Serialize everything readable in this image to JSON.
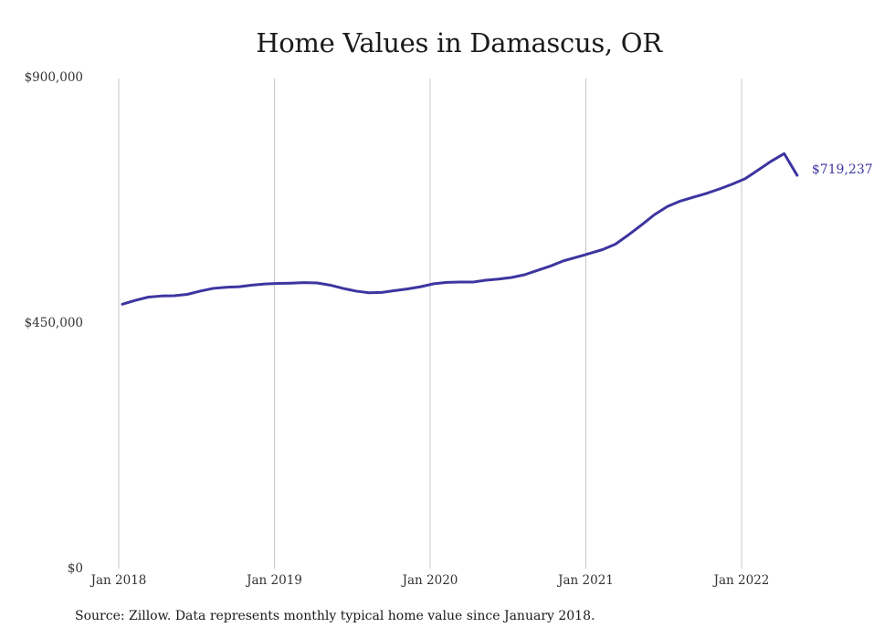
{
  "chart_data": {
    "type": "line",
    "title": "Home Values in Damascus, OR",
    "source_note": "Source: Zillow. Data represents monthly typical home value since January 2018.",
    "xlabel": "",
    "ylabel": "",
    "x_tick_labels": [
      "Jan 2018",
      "Jan 2019",
      "Jan 2020",
      "Jan 2021",
      "Jan 2022"
    ],
    "y_tick_labels": [
      "$900,000",
      "$450,000",
      "$0"
    ],
    "y_ticks": [
      900000,
      450000,
      0
    ],
    "ylim": [
      0,
      900000
    ],
    "grid": "vertical",
    "line_color": "#3d35a0",
    "end_label": "$719,237",
    "series": [
      {
        "x": [
          "2018-01",
          "2018-02",
          "2018-03",
          "2018-04",
          "2018-05",
          "2018-06",
          "2018-07",
          "2018-08",
          "2018-09",
          "2018-10",
          "2018-11",
          "2018-12",
          "2019-01",
          "2019-02",
          "2019-03",
          "2019-04",
          "2019-05",
          "2019-06",
          "2019-07",
          "2019-08",
          "2019-09",
          "2019-10",
          "2019-11",
          "2019-12",
          "2020-01",
          "2020-02",
          "2020-03",
          "2020-04",
          "2020-05",
          "2020-06",
          "2020-07",
          "2020-08",
          "2020-09",
          "2020-10",
          "2020-11",
          "2020-12",
          "2021-01",
          "2021-02",
          "2021-03",
          "2021-04",
          "2021-05",
          "2021-06",
          "2021-07",
          "2021-08",
          "2021-09",
          "2021-10",
          "2021-11",
          "2021-12",
          "2022-01",
          "2022-02",
          "2022-03",
          "2022-04",
          "2022-05"
        ],
        "values": [
          483000,
          490000,
          496000,
          498000,
          498500,
          501000,
          507000,
          512000,
          514000,
          515000,
          518000,
          520000,
          521000,
          521500,
          522500,
          522000,
          518000,
          512000,
          507000,
          504000,
          504500,
          508000,
          511000,
          515000,
          520500,
          523000,
          523500,
          523500,
          527000,
          529000,
          532000,
          537000,
          545000,
          553000,
          562500,
          569000,
          576000,
          583000,
          593000,
          610000,
          628000,
          647000,
          662000,
          672000,
          679000,
          686000,
          694000,
          703000,
          713000,
          729000,
          745000,
          759000,
          719237
        ]
      }
    ]
  }
}
